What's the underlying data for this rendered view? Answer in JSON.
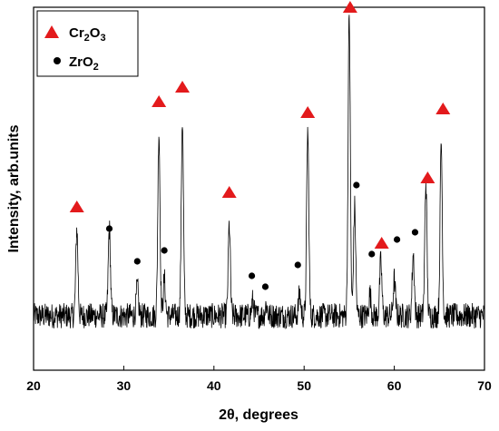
{
  "chart_data": {
    "type": "line",
    "title": "",
    "xlabel": "2θ, degrees",
    "ylabel": "Intensity, arb.units",
    "xlim": [
      20,
      70
    ],
    "ylim": [
      0,
      100
    ],
    "x_ticks": [
      "20",
      "30",
      "40",
      "50",
      "60",
      "70"
    ],
    "y_ticks_labeled": false,
    "grid": false,
    "legend_position": "top-left",
    "legend": [
      {
        "symbol": "triangle",
        "color": "#e31a1c",
        "label_main": "Cr",
        "sub1": "2",
        "mid": "O",
        "sub2": "3"
      },
      {
        "symbol": "circle",
        "color": "#000000",
        "label_main": "ZrO",
        "sub1": "2",
        "mid": "",
        "sub2": ""
      }
    ],
    "series": [
      {
        "type": "xrd-pattern",
        "color": "#000000",
        "baseline": 15,
        "noise_amplitude": 3.5,
        "peaks": [
          {
            "x": 24.8,
            "height": 24
          },
          {
            "x": 28.4,
            "height": 24
          },
          {
            "x": 31.5,
            "height": 8
          },
          {
            "x": 33.9,
            "height": 51
          },
          {
            "x": 34.5,
            "height": 10
          },
          {
            "x": 36.5,
            "height": 54
          },
          {
            "x": 41.7,
            "height": 25
          },
          {
            "x": 44.3,
            "height": 4
          },
          {
            "x": 45.8,
            "height": 3
          },
          {
            "x": 49.5,
            "height": 6
          },
          {
            "x": 50.4,
            "height": 51
          },
          {
            "x": 55.0,
            "height": 83
          },
          {
            "x": 55.6,
            "height": 30
          },
          {
            "x": 57.3,
            "height": 6
          },
          {
            "x": 58.5,
            "height": 15
          },
          {
            "x": 60.0,
            "height": 10
          },
          {
            "x": 62.1,
            "height": 17
          },
          {
            "x": 63.5,
            "height": 37
          },
          {
            "x": 65.2,
            "height": 48
          }
        ]
      }
    ],
    "markers": {
      "Cr2O3": [
        {
          "x": 24.8,
          "y": 45
        },
        {
          "x": 33.9,
          "height_ref": 0,
          "y": 74
        },
        {
          "x": 36.5,
          "y": 78
        },
        {
          "x": 41.7,
          "y": 49
        },
        {
          "x": 50.4,
          "y": 71
        },
        {
          "x": 55.1,
          "y": 100
        },
        {
          "x": 58.6,
          "y": 35
        },
        {
          "x": 63.7,
          "y": 53
        },
        {
          "x": 65.4,
          "y": 72
        }
      ],
      "ZrO2": [
        {
          "x": 28.4,
          "y": 39
        },
        {
          "x": 31.5,
          "y": 30
        },
        {
          "x": 34.5,
          "y": 33
        },
        {
          "x": 44.2,
          "y": 26
        },
        {
          "x": 45.7,
          "y": 23
        },
        {
          "x": 49.3,
          "y": 29
        },
        {
          "x": 55.8,
          "y": 51
        },
        {
          "x": 57.5,
          "y": 32
        },
        {
          "x": 60.3,
          "y": 36
        },
        {
          "x": 62.3,
          "y": 38
        }
      ]
    }
  }
}
